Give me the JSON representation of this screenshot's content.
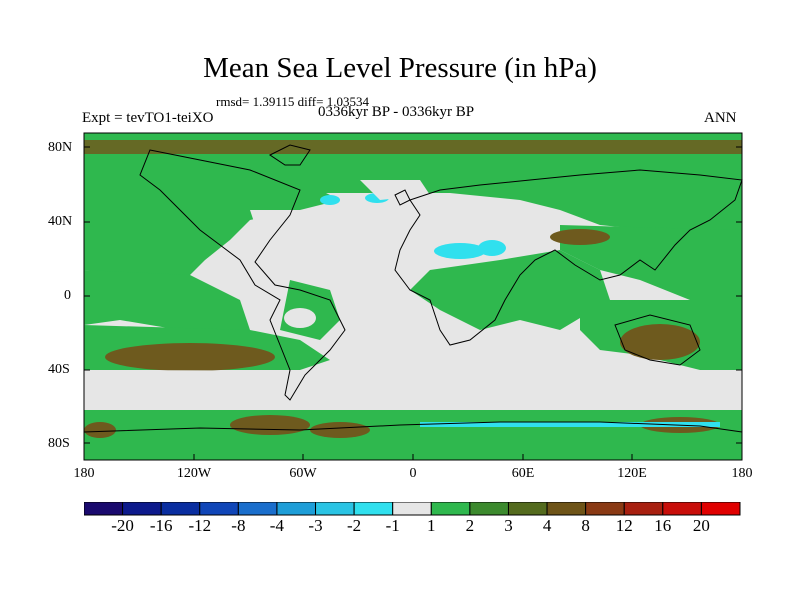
{
  "title": "Mean Sea Level Pressure (in hPa)",
  "stats": "rmsd= 1.39115 diff= 1.03534",
  "experiment": "Expt = tevTO1-teiXO",
  "period": "0336kyr BP - 0336kyr BP",
  "season": "ANN",
  "lat_labels": [
    "80N",
    "40N",
    "0",
    "40S",
    "80S"
  ],
  "lon_labels": [
    "180",
    "120W",
    "60W",
    "0",
    "60E",
    "120E",
    "180"
  ],
  "colorbar": {
    "labels": [
      "-20",
      "-16",
      "-12",
      "-8",
      "-4",
      "-3",
      "-2",
      "-1",
      "1",
      "2",
      "3",
      "4",
      "8",
      "12",
      "16",
      "20"
    ],
    "colors": [
      "#1a0a6e",
      "#0d1a8c",
      "#0a2ea0",
      "#1046b8",
      "#1a6ecc",
      "#1e9ed8",
      "#2ac4e4",
      "#30e0ee",
      "#e6e6e6",
      "#2fb84e",
      "#3c8a2e",
      "#546b1e",
      "#6e5418",
      "#8a3a14",
      "#a82010",
      "#c80e0a",
      "#e00000"
    ]
  },
  "map_colors": {
    "neutral": "#e6e6e6",
    "low_positive": "#2fb84e",
    "mid_positive": "#546b1e",
    "brown": "#7a5a1e",
    "negative": "#30e0ee"
  }
}
